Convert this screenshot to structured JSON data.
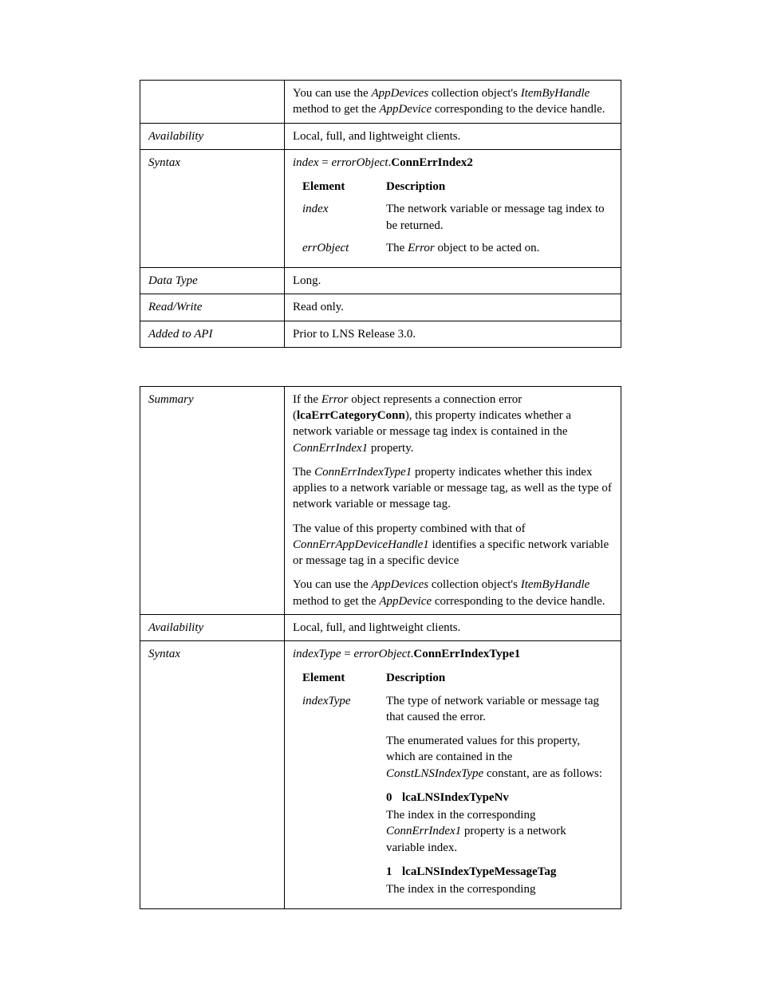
{
  "table1": {
    "desc_p1_a": "You can use the ",
    "desc_p1_b": "AppDevices",
    "desc_p1_c": " collection object's ",
    "desc_p1_d": "ItemByHandle",
    "desc_p1_e": " method to get the ",
    "desc_p1_f": "AppDevice",
    "desc_p1_g": " corresponding to the device handle.",
    "availability_label": "Availability",
    "availability_value": "Local, full, and lightweight clients.",
    "syntax_label": "Syntax",
    "syntax_lhs": "index",
    "syntax_eq": " = ",
    "syntax_obj": "errorObject",
    "syntax_dot": ".",
    "syntax_method": "ConnErrIndex2",
    "element_hdr": "Element",
    "description_hdr": "Description",
    "el1_name": "index",
    "el1_desc": "The network variable or message tag index to be returned.",
    "el2_name": "errObject",
    "el2_desc_a": "The ",
    "el2_desc_b": "Error",
    "el2_desc_c": " object to be acted on.",
    "datatype_label": "Data Type",
    "datatype_value": "Long.",
    "readwrite_label": "Read/Write",
    "readwrite_value": "Read only.",
    "added_label": "Added to API",
    "added_value": "Prior to LNS Release 3.0."
  },
  "table2": {
    "summary_label": "Summary",
    "p1_a": "If the ",
    "p1_b": "Error",
    "p1_c": " object represents a connection error (",
    "p1_d": "lcaErrCategoryConn",
    "p1_e": "), this property indicates whether a network variable or message tag index is contained in the ",
    "p1_f": "ConnErrIndex1",
    "p1_g": " property.",
    "p2_a": "The ",
    "p2_b": "ConnErrIndexType1",
    "p2_c": " property indicates whether this index applies to a network variable or message tag, as well as the type of network variable or message tag.",
    "p3_a": "The value of this property combined with that of ",
    "p3_b": "ConnErrAppDeviceHandle1",
    "p3_c": " identifies a specific network variable or message tag in a specific device",
    "p4_a": "You can use the ",
    "p4_b": "AppDevices",
    "p4_c": " collection object's ",
    "p4_d": "ItemByHandle",
    "p4_e": " method to get the ",
    "p4_f": "AppDevice",
    "p4_g": " corresponding to the device handle.",
    "availability_label": "Availability",
    "availability_value": "Local, full, and lightweight clients.",
    "syntax_label": "Syntax",
    "syntax_lhs": "indexType",
    "syntax_eq": " = ",
    "syntax_obj": "errorObject",
    "syntax_dot": ".",
    "syntax_method": "ConnErrIndexType1",
    "element_hdr": "Element",
    "description_hdr": "Description",
    "el1_name": "indexType",
    "el1_desc": "The type of network variable or message tag that caused the error.",
    "el1_p2_a": "The enumerated values for this property, which are contained in the ",
    "el1_p2_b": "ConstLNSIndexType",
    "el1_p2_c": " constant, are as follows:",
    "enum0_num": "0",
    "enum0_name": "lcaLNSIndexTypeNv",
    "enum0_desc_a": "The index in the corresponding ",
    "enum0_desc_b": "ConnErrIndex1",
    "enum0_desc_c": " property is a network variable index.",
    "enum1_num": "1",
    "enum1_name": "lcaLNSIndexTypeMessageTag",
    "enum1_desc": "The index in the corresponding"
  }
}
